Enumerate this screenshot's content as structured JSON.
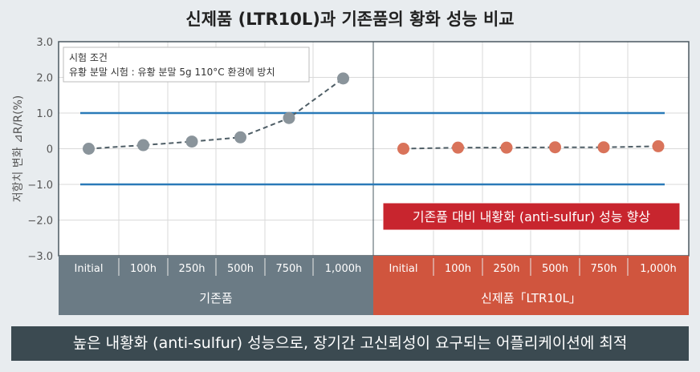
{
  "title": "신제품 (LTR10L)과 기존품의 황화 성능 비교",
  "banner": "높은 내황화 (anti-sulfur) 성능으로, 장기간 고신뢰성이 요구되는 어플리케이션에 최적",
  "chart_data": {
    "type": "line",
    "title": "신제품 (LTR10L)과 기존품의 황화 성능 비교",
    "ylabel": "저항치 변화 ⊿R/R(%)",
    "ylim": [
      -3.0,
      3.0
    ],
    "yticks": [
      "3.0",
      "2.0",
      "1.0",
      "0",
      "−1.0",
      "−2.0",
      "−3.0"
    ],
    "ytick_values": [
      3,
      2,
      1,
      0,
      -1,
      -2,
      -3
    ],
    "categories": [
      "Initial",
      "100h",
      "250h",
      "500h",
      "750h",
      "1,000h"
    ],
    "groups": [
      "기존품",
      "신제품「LTR10L」"
    ],
    "series": [
      {
        "name": "기존품",
        "values": [
          0,
          0.1,
          0.2,
          0.32,
          0.86,
          1.97
        ],
        "color": "#8a949b"
      },
      {
        "name": "신제품「LTR10L」",
        "values": [
          0,
          0.03,
          0.03,
          0.04,
          0.04,
          0.07
        ],
        "color": "#d9735a"
      }
    ],
    "limit_lines": [
      1.0,
      -1.0
    ],
    "limit_color": "#2a7ab8",
    "group_colors": [
      "#6b7b85",
      "#d0553e"
    ],
    "conditions": {
      "heading": "시험 조건",
      "text": "유황 분말 시험 : 유황 분말 5g 110°C 환경에 방치"
    },
    "annotation": "기존품 대비 내황화 (anti-sulfur) 성능 향상",
    "grid": true
  }
}
